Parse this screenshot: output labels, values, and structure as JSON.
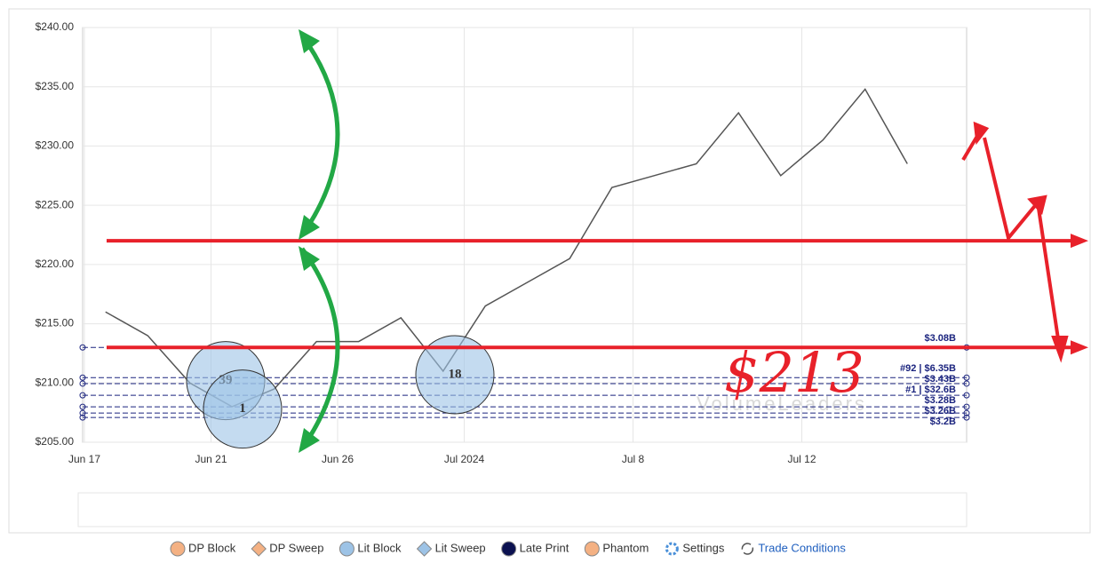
{
  "chart_data": {
    "type": "line",
    "categories": [
      "Jun 17",
      null,
      null,
      "Jun 21",
      null,
      null,
      "Jun 26",
      null,
      null,
      "Jul 2024",
      null,
      null,
      null,
      "Jul 8",
      null,
      null,
      null,
      "Jul 12",
      null,
      null
    ],
    "values": [
      216,
      214,
      210,
      208,
      209.5,
      213.5,
      213.5,
      215.5,
      211,
      216.5,
      218.5,
      220.5,
      226.5,
      227.5,
      228.5,
      232.8,
      227.5,
      230.5,
      234.8,
      228.5
    ],
    "color": "#555555",
    "ylim": [
      205,
      240
    ],
    "yticks": [
      {
        "value": 205,
        "label": "$205.00"
      },
      {
        "value": 210,
        "label": "$210.00"
      },
      {
        "value": 215,
        "label": "$215.00"
      },
      {
        "value": 220,
        "label": "$220.00"
      },
      {
        "value": 225,
        "label": "$225.00"
      },
      {
        "value": 230,
        "label": "$230.00"
      },
      {
        "value": 235,
        "label": "$235.00"
      },
      {
        "value": 240,
        "label": "$240.00"
      }
    ],
    "grid": true,
    "levels": [
      {
        "value": 213.0,
        "label": "$3.08B"
      },
      {
        "value": 210.45,
        "label": "#92 | $6.35B"
      },
      {
        "value": 209.95,
        "label": "$3.43B"
      },
      {
        "value": 208.96,
        "label": "#1 | $32.6B"
      },
      {
        "value": 207.99,
        "label": "$3.28B"
      },
      {
        "value": 207.46,
        "label": "$3.26B"
      },
      {
        "value": 207.09,
        "label": "$3.2B"
      }
    ],
    "trades": [
      {
        "rank": 39,
        "value": 210.2
      },
      {
        "rank": 1,
        "value": 207.8
      },
      {
        "rank": 18,
        "value": 210.7
      }
    ],
    "annotation": "$213",
    "annotation_levels": [
      222.0,
      213.0
    ],
    "watermark": "VolumeLeaders",
    "legend": [
      {
        "name": "DP Block",
        "color": "#f4b183",
        "shape": "circle"
      },
      {
        "name": "DP Sweep",
        "color": "#f4b183",
        "shape": "diamond"
      },
      {
        "name": "Lit Block",
        "color": "#9dc3e6",
        "shape": "circle"
      },
      {
        "name": "Lit Sweep",
        "color": "#9dc3e6",
        "shape": "diamond"
      },
      {
        "name": "Late Print",
        "color": "#0b1150",
        "shape": "circle"
      },
      {
        "name": "Phantom",
        "color": "#f4b183",
        "shape": "circle"
      },
      {
        "name": "Settings",
        "color": "#4a90d9",
        "shape": "gear"
      },
      {
        "name": "Trade Conditions",
        "color": "#555555",
        "shape": "cycle"
      }
    ]
  }
}
